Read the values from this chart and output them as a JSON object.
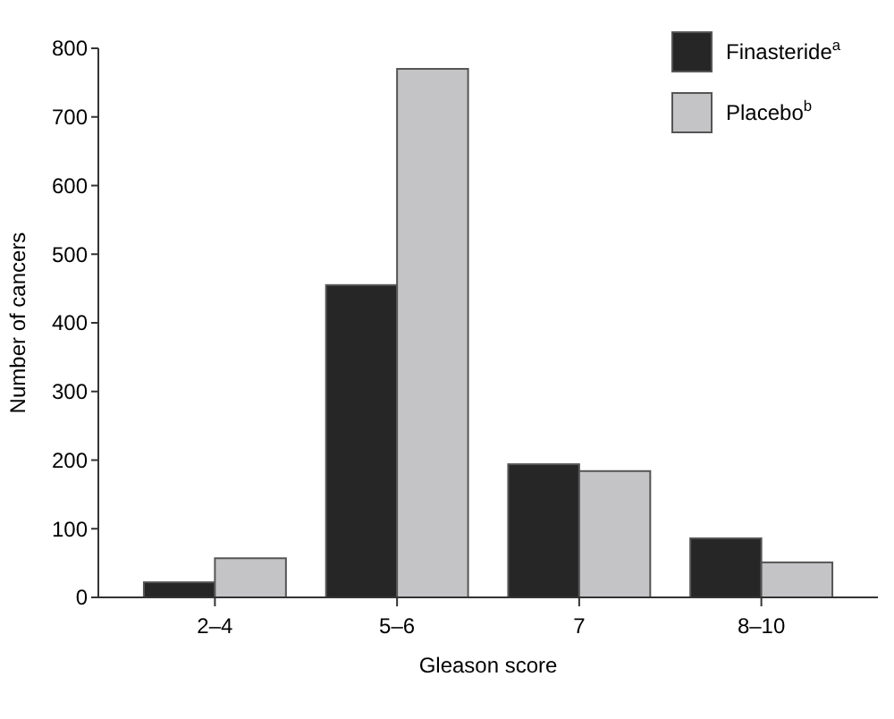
{
  "chart_data": {
    "type": "bar",
    "xlabel": "Gleason score",
    "ylabel": "Number of cancers",
    "categories": [
      "2–4",
      "5–6",
      "7",
      "8–10"
    ],
    "series": [
      {
        "name": "Finasteride$^{a}$",
        "color": "#262626",
        "values": [
          22,
          455,
          194,
          86
        ]
      },
      {
        "name": "Placebo$^{b}$",
        "color": "#c4c4c6",
        "values": [
          57,
          770,
          184,
          51
        ]
      }
    ],
    "ylim": [
      0,
      800
    ],
    "yticks": [
      0,
      100,
      200,
      300,
      400,
      500,
      600,
      700,
      800
    ],
    "legend": "top right"
  }
}
